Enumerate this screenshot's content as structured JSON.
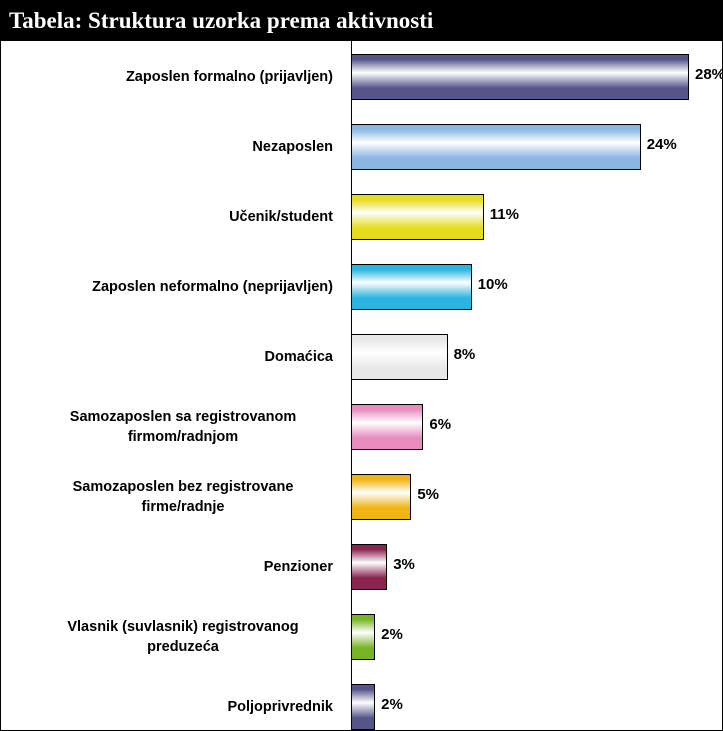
{
  "chart_data": {
    "type": "bar",
    "orientation": "horizontal",
    "title": "Tabela: Struktura uzorka prema aktivnosti",
    "categories": [
      "Zaposlen formalno (prijavljen)",
      "Nezaposlen",
      "Učenik/student",
      "Zaposlen neformalno (neprijavljen)",
      "Domaćica",
      "Samozaposlen sa registrovanom firmom/radnjom",
      "Samozaposlen bez registrovane firme/radnje",
      "Penzioner",
      "Vlasnik (suvlasnik) registrovanog preduzeća",
      "Poljoprivrednik"
    ],
    "values": [
      28,
      24,
      11,
      10,
      8,
      6,
      5,
      3,
      2,
      2
    ],
    "value_labels": [
      "28%",
      "24%",
      "11%",
      "10%",
      "8%",
      "6%",
      "5%",
      "3%",
      "2%",
      "2%"
    ],
    "colors": [
      "#55558a",
      "#8cb6e2",
      "#e4dc1c",
      "#2cb4e0",
      "#e8e8e8",
      "#e88cbe",
      "#f0b414",
      "#8a2450",
      "#78b424",
      "#55558a"
    ]
  }
}
